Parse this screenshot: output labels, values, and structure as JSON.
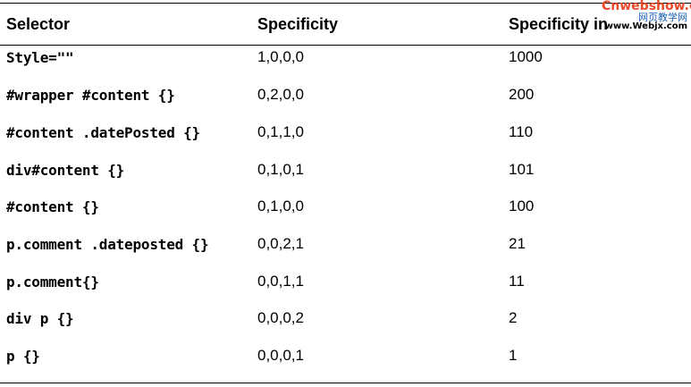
{
  "table": {
    "headers": [
      "Selector",
      "Specificity",
      "Specificity in"
    ],
    "rows": [
      {
        "selector": "Style=\"\"",
        "specificity": "1,0,0,0",
        "value": "1000"
      },
      {
        "selector": "#wrapper #content {}",
        "specificity": "0,2,0,0",
        "value": "200"
      },
      {
        "selector": "#content .datePosted {}",
        "specificity": "0,1,1,0",
        "value": "110"
      },
      {
        "selector": "div#content {}",
        "specificity": "0,1,0,1",
        "value": "101"
      },
      {
        "selector": "#content {}",
        "specificity": "0,1,0,0",
        "value": "100"
      },
      {
        "selector": "p.comment .dateposted {}",
        "specificity": "0,0,2,1",
        "value": "21"
      },
      {
        "selector": "p.comment{}",
        "specificity": "0,0,1,1",
        "value": "11"
      },
      {
        "selector": "div p {}",
        "specificity": "0,0,0,2",
        "value": "2"
      },
      {
        "selector": "p {}",
        "specificity": "0,0,0,1",
        "value": "1"
      }
    ]
  },
  "watermark": {
    "site": "Cnwebshow.com",
    "cn_text": "网页教学网",
    "url": "www.Webjx.com"
  }
}
